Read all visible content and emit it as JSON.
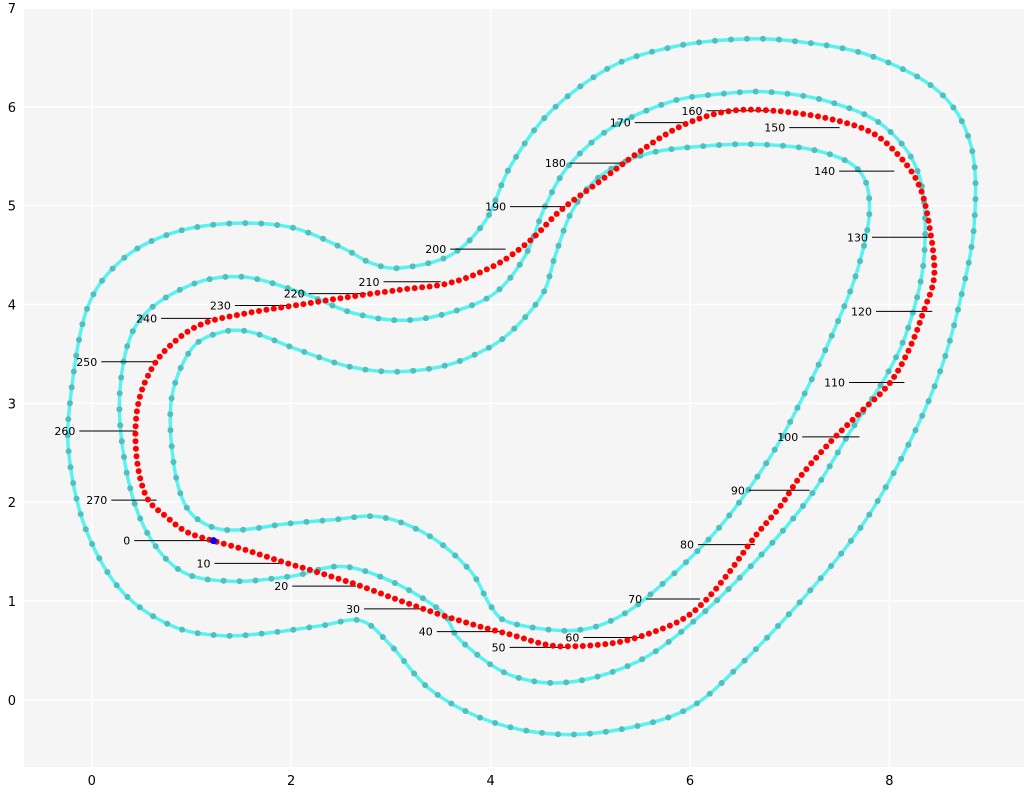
{
  "chart_data": {
    "type": "scatter",
    "title": "",
    "xlabel": "",
    "ylabel": "",
    "xlim": [
      -0.68,
      9.35
    ],
    "ylim": [
      -0.68,
      7.0
    ],
    "x_ticks": [
      0,
      2,
      4,
      6,
      8
    ],
    "y_ticks": [
      0,
      1,
      2,
      3,
      4,
      5,
      6,
      7
    ],
    "grid": true,
    "colors": {
      "background": "#f5f5f5",
      "grid": "#ffffff",
      "track": "#3ef0f0",
      "track_marker": "#52bfbf",
      "waypoint": "#ff0000",
      "start": "#0000ff",
      "annotation_line": "#000000"
    },
    "track": {
      "inner_border": [
        [
          0.8,
          3.05
        ],
        [
          1.0,
          3.55
        ],
        [
          1.3,
          3.72
        ],
        [
          1.6,
          3.72
        ],
        [
          2.05,
          3.55
        ],
        [
          2.55,
          3.38
        ],
        [
          3.0,
          3.32
        ],
        [
          3.5,
          3.37
        ],
        [
          3.9,
          3.52
        ],
        [
          4.2,
          3.72
        ],
        [
          4.52,
          4.1
        ],
        [
          4.65,
          4.5
        ],
        [
          4.82,
          4.95
        ],
        [
          5.1,
          5.3
        ],
        [
          5.55,
          5.52
        ],
        [
          6.1,
          5.6
        ],
        [
          6.7,
          5.62
        ],
        [
          7.3,
          5.55
        ],
        [
          7.7,
          5.35
        ],
        [
          7.8,
          4.95
        ],
        [
          7.68,
          4.35
        ],
        [
          7.45,
          3.75
        ],
        [
          7.15,
          3.1
        ],
        [
          6.8,
          2.45
        ],
        [
          6.3,
          1.75
        ],
        [
          5.7,
          1.15
        ],
        [
          5.25,
          0.82
        ],
        [
          4.8,
          0.7
        ],
        [
          4.2,
          0.78
        ],
        [
          4.0,
          0.95
        ],
        [
          3.8,
          1.3
        ],
        [
          3.4,
          1.65
        ],
        [
          2.9,
          1.85
        ],
        [
          2.4,
          1.82
        ],
        [
          1.95,
          1.78
        ],
        [
          1.5,
          1.72
        ],
        [
          1.2,
          1.75
        ],
        [
          0.95,
          1.95
        ],
        [
          0.82,
          2.4
        ],
        [
          0.8,
          3.05
        ]
      ],
      "center_line": [
        [
          0.28,
          3.1
        ],
        [
          0.45,
          3.8
        ],
        [
          0.95,
          4.18
        ],
        [
          1.5,
          4.28
        ],
        [
          2.1,
          4.12
        ],
        [
          2.6,
          3.92
        ],
        [
          3.1,
          3.84
        ],
        [
          3.6,
          3.92
        ],
        [
          4.05,
          4.12
        ],
        [
          4.35,
          4.5
        ],
        [
          4.55,
          5.0
        ],
        [
          4.78,
          5.4
        ],
        [
          5.2,
          5.78
        ],
        [
          5.8,
          6.05
        ],
        [
          6.3,
          6.13
        ],
        [
          6.8,
          6.15
        ],
        [
          7.4,
          6.05
        ],
        [
          7.95,
          5.8
        ],
        [
          8.3,
          5.3
        ],
        [
          8.35,
          4.5
        ],
        [
          8.2,
          3.8
        ],
        [
          7.98,
          3.3
        ],
        [
          7.6,
          2.7
        ],
        [
          7.2,
          2.05
        ],
        [
          6.7,
          1.45
        ],
        [
          6.1,
          0.85
        ],
        [
          5.5,
          0.4
        ],
        [
          4.8,
          0.18
        ],
        [
          4.2,
          0.25
        ],
        [
          3.7,
          0.6
        ],
        [
          3.5,
          0.9
        ],
        [
          3.0,
          1.2
        ],
        [
          2.5,
          1.35
        ],
        [
          2.0,
          1.25
        ],
        [
          1.4,
          1.2
        ],
        [
          0.9,
          1.3
        ],
        [
          0.55,
          1.7
        ],
        [
          0.35,
          2.3
        ],
        [
          0.28,
          3.1
        ]
      ],
      "outer_border": [
        [
          -0.22,
          3.0
        ],
        [
          -0.05,
          3.95
        ],
        [
          0.3,
          4.45
        ],
        [
          0.8,
          4.72
        ],
        [
          1.4,
          4.82
        ],
        [
          2.0,
          4.78
        ],
        [
          2.5,
          4.58
        ],
        [
          2.8,
          4.42
        ],
        [
          3.1,
          4.37
        ],
        [
          3.6,
          4.5
        ],
        [
          3.95,
          4.85
        ],
        [
          4.2,
          5.4
        ],
        [
          4.6,
          5.95
        ],
        [
          5.2,
          6.4
        ],
        [
          5.8,
          6.6
        ],
        [
          6.4,
          6.68
        ],
        [
          7.0,
          6.67
        ],
        [
          7.8,
          6.52
        ],
        [
          8.5,
          6.15
        ],
        [
          8.82,
          5.6
        ],
        [
          8.85,
          4.8
        ],
        [
          8.7,
          4.0
        ],
        [
          8.5,
          3.3
        ],
        [
          8.2,
          2.6
        ],
        [
          7.75,
          1.8
        ],
        [
          7.2,
          1.1
        ],
        [
          6.5,
          0.35
        ],
        [
          6.0,
          -0.08
        ],
        [
          5.4,
          -0.28
        ],
        [
          4.7,
          -0.35
        ],
        [
          4.0,
          -0.22
        ],
        [
          3.4,
          0.1
        ],
        [
          3.0,
          0.55
        ],
        [
          2.7,
          0.8
        ],
        [
          2.3,
          0.75
        ],
        [
          1.8,
          0.68
        ],
        [
          1.3,
          0.65
        ],
        [
          0.8,
          0.75
        ],
        [
          0.3,
          1.1
        ],
        [
          -0.05,
          1.7
        ],
        [
          -0.22,
          2.4
        ],
        [
          -0.22,
          3.0
        ]
      ],
      "waypoints": [
        [
          1.18,
          1.62
        ],
        [
          1.5,
          1.53
        ],
        [
          1.9,
          1.4
        ],
        [
          2.3,
          1.28
        ],
        [
          2.7,
          1.15
        ],
        [
          3.1,
          1.0
        ],
        [
          3.5,
          0.86
        ],
        [
          3.9,
          0.74
        ],
        [
          4.2,
          0.66
        ],
        [
          4.55,
          0.56
        ],
        [
          4.8,
          0.54
        ],
        [
          5.2,
          0.57
        ],
        [
          5.5,
          0.64
        ],
        [
          5.9,
          0.8
        ],
        [
          6.15,
          1.0
        ],
        [
          6.4,
          1.3
        ],
        [
          6.65,
          1.65
        ],
        [
          6.9,
          1.95
        ],
        [
          7.1,
          2.25
        ],
        [
          7.4,
          2.6
        ],
        [
          7.7,
          2.9
        ],
        [
          8.0,
          3.2
        ],
        [
          8.2,
          3.55
        ],
        [
          8.35,
          3.95
        ],
        [
          8.45,
          4.3
        ],
        [
          8.4,
          4.8
        ],
        [
          8.3,
          5.2
        ],
        [
          8.1,
          5.5
        ],
        [
          7.8,
          5.75
        ],
        [
          7.3,
          5.9
        ],
        [
          6.7,
          5.97
        ],
        [
          6.3,
          5.94
        ],
        [
          5.9,
          5.8
        ],
        [
          5.5,
          5.55
        ],
        [
          5.1,
          5.25
        ],
        [
          4.7,
          4.95
        ],
        [
          4.4,
          4.65
        ],
        [
          4.05,
          4.4
        ],
        [
          3.6,
          4.22
        ],
        [
          3.1,
          4.15
        ],
        [
          2.6,
          4.08
        ],
        [
          2.1,
          4.0
        ],
        [
          1.6,
          3.92
        ],
        [
          1.1,
          3.8
        ],
        [
          0.75,
          3.55
        ],
        [
          0.55,
          3.25
        ],
        [
          0.45,
          2.9
        ],
        [
          0.45,
          2.45
        ],
        [
          0.55,
          2.05
        ],
        [
          0.75,
          1.85
        ],
        [
          0.95,
          1.7
        ],
        [
          1.18,
          1.62
        ]
      ],
      "start": [
        1.22,
        1.61
      ]
    },
    "annotations": [
      {
        "label": "0",
        "text_x": 0.35,
        "text_y": 1.61,
        "point_x": 1.22,
        "point_y": 1.61
      },
      {
        "label": "10",
        "text_x": 1.12,
        "text_y": 1.38,
        "point_x": 1.9,
        "point_y": 1.38
      },
      {
        "label": "20",
        "text_x": 1.9,
        "text_y": 1.15,
        "point_x": 2.65,
        "point_y": 1.15
      },
      {
        "label": "30",
        "text_x": 2.62,
        "text_y": 0.92,
        "point_x": 3.35,
        "point_y": 0.92
      },
      {
        "label": "40",
        "text_x": 3.35,
        "text_y": 0.69,
        "point_x": 4.1,
        "point_y": 0.69
      },
      {
        "label": "50",
        "text_x": 4.08,
        "text_y": 0.53,
        "point_x": 4.75,
        "point_y": 0.53
      },
      {
        "label": "60",
        "text_x": 4.82,
        "text_y": 0.63,
        "point_x": 5.5,
        "point_y": 0.63
      },
      {
        "label": "70",
        "text_x": 5.45,
        "text_y": 1.02,
        "point_x": 6.1,
        "point_y": 1.02
      },
      {
        "label": "80",
        "text_x": 5.97,
        "text_y": 1.57,
        "point_x": 6.65,
        "point_y": 1.57
      },
      {
        "label": "90",
        "text_x": 6.48,
        "text_y": 2.12,
        "point_x": 7.2,
        "point_y": 2.12
      },
      {
        "label": "100",
        "text_x": 6.98,
        "text_y": 2.66,
        "point_x": 7.7,
        "point_y": 2.66
      },
      {
        "label": "110",
        "text_x": 7.45,
        "text_y": 3.21,
        "point_x": 8.15,
        "point_y": 3.21
      },
      {
        "label": "120",
        "text_x": 7.72,
        "text_y": 3.93,
        "point_x": 8.43,
        "point_y": 3.93
      },
      {
        "label": "130",
        "text_x": 7.68,
        "text_y": 4.68,
        "point_x": 8.4,
        "point_y": 4.68
      },
      {
        "label": "140",
        "text_x": 7.35,
        "text_y": 5.35,
        "point_x": 8.05,
        "point_y": 5.35
      },
      {
        "label": "150",
        "text_x": 6.85,
        "text_y": 5.79,
        "point_x": 7.5,
        "point_y": 5.79
      },
      {
        "label": "160",
        "text_x": 6.02,
        "text_y": 5.96,
        "point_x": 6.8,
        "point_y": 5.96
      },
      {
        "label": "170",
        "text_x": 5.3,
        "text_y": 5.84,
        "point_x": 5.98,
        "point_y": 5.84
      },
      {
        "label": "180",
        "text_x": 4.65,
        "text_y": 5.43,
        "point_x": 5.35,
        "point_y": 5.43
      },
      {
        "label": "190",
        "text_x": 4.05,
        "text_y": 4.99,
        "point_x": 4.75,
        "point_y": 4.99
      },
      {
        "label": "200",
        "text_x": 3.45,
        "text_y": 4.56,
        "point_x": 4.15,
        "point_y": 4.56
      },
      {
        "label": "210",
        "text_x": 2.78,
        "text_y": 4.23,
        "point_x": 3.5,
        "point_y": 4.23
      },
      {
        "label": "220",
        "text_x": 2.03,
        "text_y": 4.11,
        "point_x": 2.75,
        "point_y": 4.11
      },
      {
        "label": "230",
        "text_x": 1.29,
        "text_y": 3.99,
        "point_x": 2.0,
        "point_y": 3.99
      },
      {
        "label": "240",
        "text_x": 0.55,
        "text_y": 3.86,
        "point_x": 1.2,
        "point_y": 3.86
      },
      {
        "label": "250",
        "text_x": -0.05,
        "text_y": 3.42,
        "point_x": 0.65,
        "point_y": 3.42
      },
      {
        "label": "260",
        "text_x": -0.27,
        "text_y": 2.72,
        "point_x": 0.45,
        "point_y": 2.72
      },
      {
        "label": "270",
        "text_x": 0.05,
        "text_y": 2.02,
        "point_x": 0.65,
        "point_y": 2.02
      }
    ]
  }
}
